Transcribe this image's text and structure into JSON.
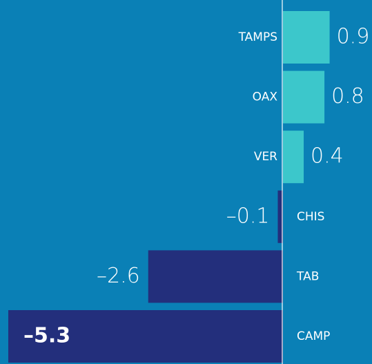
{
  "chart_data": {
    "type": "bar",
    "orientation": "horizontal",
    "categories": [
      "TAMPS",
      "OAX",
      "VER",
      "CHIS",
      "TAB",
      "CAMP"
    ],
    "values": [
      0.9,
      0.8,
      0.4,
      -0.1,
      -2.6,
      -5.3
    ],
    "value_labels": [
      "0.9",
      "0.8",
      "0.4",
      "–0.1",
      "–2.6",
      "–5.3"
    ],
    "color": "#3cc7cb",
    "negative_color": "#232f7c"
  }
}
